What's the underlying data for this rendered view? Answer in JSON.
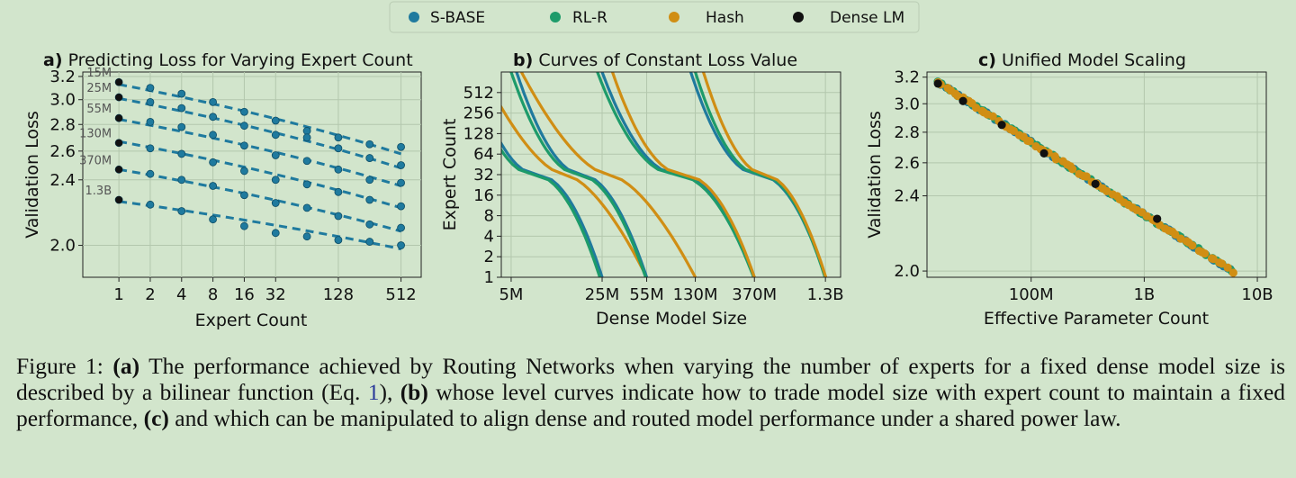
{
  "colors": {
    "s_base": "#1f7a9e",
    "rl_r": "#1d9b6a",
    "hash": "#d08e14",
    "dense": "#111111",
    "fit": "#1f7a9e",
    "background": "#d2e5cc"
  },
  "legend": {
    "entries": [
      {
        "name": "S-BASE",
        "color_key": "s_base"
      },
      {
        "name": "RL-R",
        "color_key": "rl_r"
      },
      {
        "name": "Hash",
        "color_key": "hash"
      },
      {
        "name": "Dense LM",
        "color_key": "dense"
      }
    ]
  },
  "chart_data": [
    {
      "type": "scatter",
      "panel_label": "a)",
      "title": "Predicting Loss for Varying Expert Count",
      "xlabel": "Expert Count",
      "ylabel": "Validation Loss",
      "xscale": "log2",
      "yscale": "log",
      "xlim": [
        0.45,
        800
      ],
      "ylim": [
        1.83,
        3.24
      ],
      "xticks": [
        1,
        2,
        4,
        8,
        16,
        32,
        128,
        512
      ],
      "xtick_labels": [
        "1",
        "2",
        "4",
        "8",
        "16",
        "32",
        "128",
        "512"
      ],
      "yticks": [
        2.0,
        2.4,
        2.6,
        2.8,
        3.0,
        3.2
      ],
      "ytick_labels": [
        "2.0",
        "2.4",
        "2.6",
        "2.8",
        "3.0",
        "3.2"
      ],
      "extra_x": [
        64,
        256
      ],
      "grid": true,
      "series": [
        {
          "name": "15M",
          "dense": 3.15,
          "points": [
            [
              1,
              3.15
            ],
            [
              2,
              3.1
            ],
            [
              4,
              3.05
            ],
            [
              8,
              2.98
            ],
            [
              16,
              2.9
            ],
            [
              32,
              2.83
            ],
            [
              64,
              2.75
            ],
            [
              128,
              2.7
            ],
            [
              256,
              2.65
            ],
            [
              512,
              2.63
            ]
          ],
          "fit": [
            3.13,
            2.58
          ]
        },
        {
          "name": "25M",
          "dense": 3.02,
          "points": [
            [
              1,
              3.02
            ],
            [
              2,
              2.98
            ],
            [
              4,
              2.93
            ],
            [
              8,
              2.86
            ],
            [
              16,
              2.79
            ],
            [
              32,
              2.72
            ],
            [
              64,
              2.7
            ],
            [
              128,
              2.62
            ],
            [
              256,
              2.55
            ],
            [
              512,
              2.5
            ]
          ],
          "fit": [
            3.01,
            2.48
          ]
        },
        {
          "name": "55M",
          "dense": 2.85,
          "points": [
            [
              1,
              2.85
            ],
            [
              2,
              2.82
            ],
            [
              4,
              2.78
            ],
            [
              8,
              2.72
            ],
            [
              16,
              2.64
            ],
            [
              32,
              2.57
            ],
            [
              64,
              2.53
            ],
            [
              128,
              2.47
            ],
            [
              256,
              2.4
            ],
            [
              512,
              2.38
            ]
          ],
          "fit": [
            2.84,
            2.36
          ]
        },
        {
          "name": "130M",
          "dense": 2.66,
          "points": [
            [
              1,
              2.66
            ],
            [
              2,
              2.62
            ],
            [
              4,
              2.58
            ],
            [
              8,
              2.52
            ],
            [
              16,
              2.46
            ],
            [
              32,
              2.4
            ],
            [
              64,
              2.37
            ],
            [
              128,
              2.32
            ],
            [
              256,
              2.27
            ],
            [
              512,
              2.23
            ]
          ],
          "fit": [
            2.67,
            2.22
          ]
        },
        {
          "name": "370M",
          "dense": 2.47,
          "points": [
            [
              1,
              2.47
            ],
            [
              2,
              2.44
            ],
            [
              4,
              2.4
            ],
            [
              8,
              2.36
            ],
            [
              16,
              2.3
            ],
            [
              32,
              2.25
            ],
            [
              64,
              2.22
            ],
            [
              128,
              2.17
            ],
            [
              256,
              2.12
            ],
            [
              512,
              2.1
            ]
          ],
          "fit": [
            2.47,
            2.08
          ]
        },
        {
          "name": "1.3B",
          "dense": 2.27,
          "points": [
            [
              1,
              2.27
            ],
            [
              2,
              2.24
            ],
            [
              4,
              2.2
            ],
            [
              8,
              2.15
            ],
            [
              16,
              2.11
            ],
            [
              32,
              2.07
            ],
            [
              64,
              2.05
            ],
            [
              128,
              2.03
            ],
            [
              256,
              2.02
            ],
            [
              512,
              2.0
            ]
          ],
          "fit": [
            2.26,
            1.98
          ]
        }
      ]
    },
    {
      "type": "line",
      "panel_label": "b)",
      "title": "Curves of Constant Loss Value",
      "xlabel": "Dense Model Size",
      "ylabel": "Expert Count",
      "xscale": "log",
      "yscale": "log2",
      "xlim": [
        4.2,
        1700
      ],
      "ylim": [
        1,
        1024
      ],
      "xticks": [
        5,
        25,
        55,
        130,
        370,
        1300
      ],
      "xtick_labels": [
        "5M",
        "25M",
        "55M",
        "130M",
        "370M",
        "1.3B"
      ],
      "yticks": [
        1,
        2,
        4,
        8,
        16,
        32,
        64,
        128,
        256,
        512
      ],
      "ytick_labels": [
        "1",
        "2",
        "4",
        "8",
        "16",
        "32",
        "64",
        "128",
        "256",
        "512"
      ],
      "grid": true,
      "curves": [
        {
          "group": 1,
          "series": "S-BASE",
          "start_x": 2.5,
          "end_x": 25,
          "a": 0.5
        },
        {
          "group": 1,
          "series": "RL-R",
          "start_x": 2.3,
          "end_x": 24,
          "a": 0.5
        },
        {
          "group": 1,
          "series": "Hash",
          "start_x": 3.0,
          "end_x": 55,
          "a": 0.3
        },
        {
          "group": 2,
          "series": "S-BASE",
          "start_x": 5.5,
          "end_x": 55,
          "a": 0.45
        },
        {
          "group": 2,
          "series": "RL-R",
          "start_x": 5.0,
          "end_x": 54,
          "a": 0.45
        },
        {
          "group": 2,
          "series": "Hash",
          "start_x": 6.0,
          "end_x": 130,
          "a": 0.3
        },
        {
          "group": 3,
          "series": "S-BASE",
          "start_x": 25,
          "end_x": 370,
          "a": 0.5
        },
        {
          "group": 3,
          "series": "RL-R",
          "start_x": 23,
          "end_x": 365,
          "a": 0.5
        },
        {
          "group": 3,
          "series": "Hash",
          "start_x": 30,
          "end_x": 370,
          "a": 0.5
        },
        {
          "group": 4,
          "series": "S-BASE",
          "start_x": 120,
          "end_x": 1300,
          "a": 0.5
        },
        {
          "group": 4,
          "series": "RL-R",
          "start_x": 130,
          "end_x": 1290,
          "a": 0.5
        },
        {
          "group": 4,
          "series": "Hash",
          "start_x": 150,
          "end_x": 1310,
          "a": 0.45
        }
      ]
    },
    {
      "type": "scatter",
      "panel_label": "c)",
      "title": "Unified Model Scaling",
      "xlabel": "Effective Parameter Count",
      "ylabel": "Validation Loss",
      "xscale": "log",
      "yscale": "log",
      "xlim": [
        12,
        12000
      ],
      "ylim": [
        1.97,
        3.24
      ],
      "xticks": [
        100,
        1000,
        10000
      ],
      "xtick_labels": [
        "100M",
        "1B",
        "10B"
      ],
      "yticks": [
        2.0,
        2.4,
        2.6,
        2.8,
        3.0,
        3.2
      ],
      "ytick_labels": [
        "2.0",
        "2.4",
        "2.6",
        "2.8",
        "3.0",
        "3.2"
      ],
      "grid": true,
      "fit_line": {
        "x": [
          15,
          6000
        ],
        "y": [
          3.16,
          2.0
        ]
      },
      "dense_points": [
        [
          15,
          3.15
        ],
        [
          25,
          3.02
        ],
        [
          55,
          2.85
        ],
        [
          130,
          2.66
        ],
        [
          370,
          2.47
        ],
        [
          1300,
          2.27
        ]
      ]
    }
  ],
  "caption": {
    "label": "Figure 1:",
    "a_marker": "(a)",
    "text1": "The performance achieved by Routing Networks when varying the number of experts for a fixed dense model size is described by a bilinear function (Eq.",
    "eq_ref": "1",
    "text2": "),",
    "b_marker": "(b)",
    "text3": "whose level curves indicate how to trade model size with expert count to maintain a fixed performance,",
    "c_marker": "(c)",
    "text4": "and which can be manipulated to align dense and routed model performance under a shared power law."
  }
}
